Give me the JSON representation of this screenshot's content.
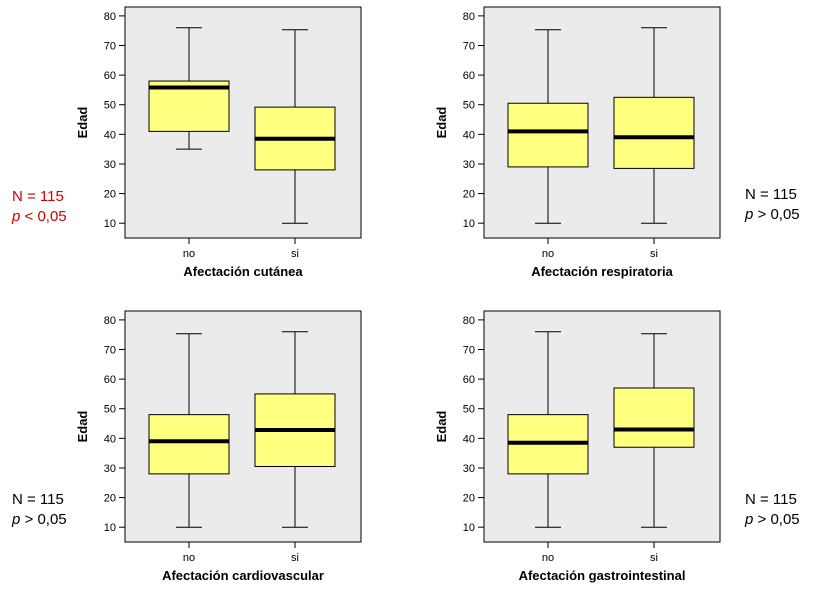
{
  "chart_data": [
    {
      "type": "boxplot",
      "xlabel": "Afectación cutánea",
      "ylabel": "Edad",
      "categories": [
        "no",
        "si"
      ],
      "ylim": [
        5,
        83
      ],
      "yticks": [
        10,
        20,
        30,
        40,
        50,
        60,
        70,
        80
      ],
      "boxes": [
        {
          "category": "no",
          "min": 35,
          "q1": 41,
          "median": 55.8,
          "q3": 58,
          "max": 76
        },
        {
          "category": "si",
          "min": 10,
          "q1": 28,
          "median": 38.5,
          "q3": 49.2,
          "max": 75.3
        }
      ],
      "annotation": {
        "n_text": "N = 115",
        "p_letter": "p",
        "p_rest": " < 0,05",
        "significant": true
      },
      "box_color": "#ffff80",
      "background_color": "#ebebeb"
    },
    {
      "type": "boxplot",
      "xlabel": "Afectación respiratoria",
      "ylabel": "Edad",
      "categories": [
        "no",
        "si"
      ],
      "ylim": [
        5,
        83
      ],
      "yticks": [
        10,
        20,
        30,
        40,
        50,
        60,
        70,
        80
      ],
      "boxes": [
        {
          "category": "no",
          "min": 10,
          "q1": 29,
          "median": 41,
          "q3": 50.5,
          "max": 75.3
        },
        {
          "category": "si",
          "min": 10,
          "q1": 28.5,
          "median": 39,
          "q3": 52.5,
          "max": 76
        }
      ],
      "annotation": {
        "n_text": "N = 115",
        "p_letter": "p",
        "p_rest": " > 0,05",
        "significant": false
      },
      "box_color": "#ffff80",
      "background_color": "#ebebeb"
    },
    {
      "type": "boxplot",
      "xlabel": "Afectación cardiovascular",
      "ylabel": "Edad",
      "categories": [
        "no",
        "si"
      ],
      "ylim": [
        5,
        83
      ],
      "yticks": [
        10,
        20,
        30,
        40,
        50,
        60,
        70,
        80
      ],
      "boxes": [
        {
          "category": "no",
          "min": 10,
          "q1": 28,
          "median": 39,
          "q3": 48,
          "max": 75.3
        },
        {
          "category": "si",
          "min": 10,
          "q1": 30.5,
          "median": 42.8,
          "q3": 55,
          "max": 76
        }
      ],
      "annotation": {
        "n_text": "N = 115",
        "p_letter": "p",
        "p_rest": " > 0,05",
        "significant": false
      },
      "box_color": "#ffff80",
      "background_color": "#ebebeb"
    },
    {
      "type": "boxplot",
      "xlabel": "Afectación gastrointestinal",
      "ylabel": "Edad",
      "categories": [
        "no",
        "si"
      ],
      "ylim": [
        5,
        83
      ],
      "yticks": [
        10,
        20,
        30,
        40,
        50,
        60,
        70,
        80
      ],
      "boxes": [
        {
          "category": "no",
          "min": 10,
          "q1": 28,
          "median": 38.5,
          "q3": 48,
          "max": 76
        },
        {
          "category": "si",
          "min": 10,
          "q1": 37,
          "median": 43,
          "q3": 57,
          "max": 75.3
        }
      ],
      "annotation": {
        "n_text": "N = 115",
        "p_letter": "p",
        "p_rest": " > 0,05",
        "significant": false
      },
      "box_color": "#ffff80",
      "background_color": "#ebebeb"
    }
  ]
}
